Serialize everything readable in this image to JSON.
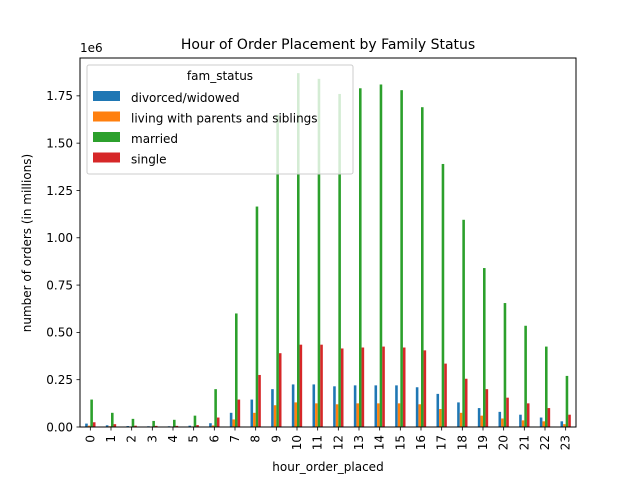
{
  "chart_data": {
    "type": "bar",
    "title": "Hour of Order Placement by Family Status",
    "xlabel": "hour_order_placed",
    "ylabel": "number of orders (in millions)",
    "y_offset_text": "1e6",
    "ylim": [
      0,
      1950000
    ],
    "yticks": [
      0,
      250000,
      500000,
      750000,
      1000000,
      1250000,
      1500000,
      1750000
    ],
    "ytick_labels": [
      "0.00",
      "0.25",
      "0.50",
      "0.75",
      "1.00",
      "1.25",
      "1.50",
      "1.75"
    ],
    "grid": false,
    "legend": {
      "title": "fam_status",
      "placement": "top-left"
    },
    "categories": [
      "0",
      "1",
      "2",
      "3",
      "4",
      "5",
      "6",
      "7",
      "8",
      "9",
      "10",
      "11",
      "12",
      "13",
      "14",
      "15",
      "16",
      "17",
      "18",
      "19",
      "20",
      "21",
      "22",
      "23"
    ],
    "series": [
      {
        "name": "divorced/widowed",
        "color": "#1f77b4",
        "values": [
          18000,
          9000,
          5000,
          4000,
          4000,
          7000,
          20000,
          75000,
          145000,
          200000,
          225000,
          225000,
          215000,
          220000,
          220000,
          220000,
          210000,
          175000,
          130000,
          100000,
          80000,
          65000,
          50000,
          30000
        ]
      },
      {
        "name": "living with parents and siblings",
        "color": "#ff7f0e",
        "values": [
          7000,
          4000,
          2000,
          2000,
          2000,
          3000,
          8000,
          40000,
          75000,
          115000,
          130000,
          125000,
          120000,
          125000,
          125000,
          125000,
          120000,
          95000,
          75000,
          60000,
          45000,
          35000,
          30000,
          15000
        ]
      },
      {
        "name": "married",
        "color": "#2ca02c",
        "values": [
          145000,
          75000,
          43000,
          32000,
          38000,
          60000,
          200000,
          600000,
          1165000,
          1650000,
          1870000,
          1840000,
          1760000,
          1790000,
          1810000,
          1780000,
          1690000,
          1390000,
          1095000,
          840000,
          655000,
          535000,
          425000,
          270000
        ]
      },
      {
        "name": "single",
        "color": "#d62728",
        "values": [
          25000,
          15000,
          7000,
          6000,
          6000,
          10000,
          50000,
          145000,
          275000,
          390000,
          435000,
          435000,
          415000,
          420000,
          425000,
          420000,
          405000,
          335000,
          255000,
          200000,
          155000,
          125000,
          100000,
          65000
        ]
      }
    ]
  }
}
